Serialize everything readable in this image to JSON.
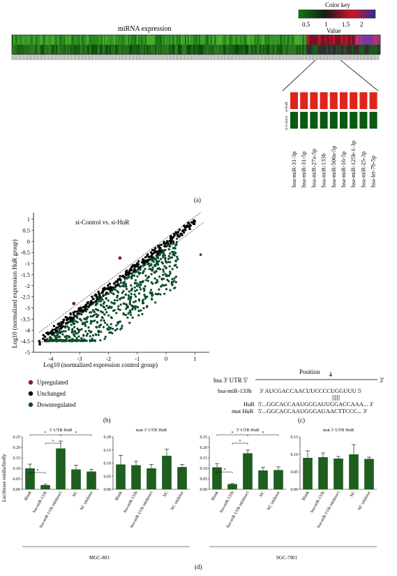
{
  "panel_labels": {
    "a": "(a)",
    "b": "(b)",
    "c": "(c)",
    "d": "(d)"
  },
  "panel_a": {
    "heatmap_title": "miRNA expression",
    "color_key": {
      "title": "Color key",
      "value_label": "Value",
      "ticks": [
        "0.5",
        "1",
        "1.5",
        "2"
      ],
      "colors": [
        "#0a7a10",
        "#1a1a1a",
        "#d4142a",
        "#2a2a9a"
      ]
    },
    "inset_group_labels": [
      "si-Control",
      "si-HuR"
    ],
    "inset_row_colors": {
      "si_control": "#0b5a12",
      "si_hur": "#e0241c"
    },
    "inset_mirnas": [
      "hsa-miR-31-3p",
      "hsa-miR-31-5p",
      "hsa-miR-27a-5p",
      "hsa-miR-133b",
      "hsa-miR-500a-5p",
      "hsa-miR-16-5p",
      "hsa-miR-125b-1-3p",
      "hsa-miR-25-3p",
      "hsa-let-7b-5p"
    ]
  },
  "chart_data": [
    {
      "type": "scatter",
      "panel": "b",
      "title": "si-Control vs. si-HuR",
      "xlabel": "Log10 (normalized expression control group)",
      "ylabel": "Log10 (normalized expression HuR group)",
      "xlim": [
        -4.6,
        1.5
      ],
      "ylim": [
        -5,
        1.3
      ],
      "xticks": [
        "-4",
        "-3",
        "-2",
        "-1",
        "0",
        "1"
      ],
      "yticks": [
        "1",
        "0.5",
        "0",
        "-0.5",
        "-1",
        "-1.5",
        "-2",
        "-2.5",
        "-3",
        "-3.5",
        "-4",
        "-4.5",
        "-5"
      ],
      "legend_placement": "bottom-left",
      "series": [
        {
          "name": "Upregulated",
          "color": "#8b1a1a",
          "x": [
            -3.2,
            -1.6
          ],
          "y": [
            -2.8,
            -0.75
          ]
        },
        {
          "name": "Unchanged",
          "color": "#000000",
          "x": [
            -4.4,
            -4.2,
            -4.0,
            -3.8,
            -3.6,
            -3.4,
            -3.2,
            -3.0,
            -2.8,
            -2.6,
            -2.4,
            -2.2,
            -2.0,
            -1.8,
            -1.6,
            -1.4,
            -1.2,
            -1.0,
            -0.8,
            -0.6,
            -0.4,
            -0.2,
            0.0,
            0.2,
            0.4,
            0.6,
            0.8,
            1.0
          ],
          "y": [
            -4.5,
            -4.3,
            -4.1,
            -3.9,
            -3.7,
            -3.5,
            -3.3,
            -3.1,
            -2.9,
            -2.7,
            -2.5,
            -2.3,
            -2.1,
            -1.9,
            -1.7,
            -1.5,
            -1.3,
            -1.1,
            -0.9,
            -0.7,
            -0.5,
            -0.3,
            -0.1,
            0.1,
            0.3,
            0.5,
            0.7,
            0.9
          ]
        },
        {
          "name": "Downregulated",
          "color": "#0b4a2a",
          "x": [
            -3.8,
            -3.5,
            -3.2,
            -3.0,
            -2.8,
            -2.6,
            -2.4,
            -2.2,
            -2.0,
            -1.8,
            -1.6,
            -1.4,
            -1.2,
            -1.0,
            -0.8,
            -0.6,
            -0.4,
            0.0,
            0.4,
            1.2
          ],
          "y": [
            -4.5,
            -4.3,
            -4.2,
            -4.0,
            -3.8,
            -3.6,
            -3.4,
            -3.2,
            -3.0,
            -2.8,
            -2.6,
            -2.4,
            -2.2,
            -2.0,
            -1.8,
            -1.6,
            -1.4,
            -1.2,
            -0.8,
            -0.6
          ]
        }
      ]
    },
    {
      "type": "bar",
      "panel": "d",
      "cell_line": "MGC-803",
      "title": "3' UTR HuR",
      "ylabel": "Luciferase renilla/firefly",
      "categories": [
        "Blank",
        "hsa-miR-133b",
        "hsa-miR-133b inhibitor1",
        "NC",
        "NC inhibitor"
      ],
      "values": [
        0.1,
        0.02,
        0.195,
        0.095,
        0.085
      ],
      "errors": [
        0.02,
        0.004,
        0.035,
        0.02,
        0.01
      ],
      "ylim": [
        0,
        0.25
      ],
      "yticks": [
        "0.00",
        "0.05",
        "0.10",
        "0.15",
        "0.20",
        "0.25"
      ],
      "significance": [
        {
          "from": 0,
          "to": 2,
          "label": "*"
        },
        {
          "from": 0,
          "to": 1,
          "label": "*"
        },
        {
          "from": 1,
          "to": 2,
          "label": "*"
        },
        {
          "from": 2,
          "to": 4,
          "label": "*"
        }
      ]
    },
    {
      "type": "bar",
      "panel": "d",
      "cell_line": "MGC-803",
      "title": "mut 3' UTR HuR",
      "categories": [
        "Blank",
        "hsa-miR-133b",
        "hsa-miR-133b inhibitor1",
        "NC",
        "NC inhibitor"
      ],
      "values": [
        0.095,
        0.092,
        0.08,
        0.128,
        0.085
      ],
      "errors": [
        0.035,
        0.015,
        0.015,
        0.025,
        0.01
      ],
      "ylim": [
        0,
        0.2
      ],
      "yticks": [
        "0.00",
        "0.05",
        "0.10",
        "0.15",
        "0.20"
      ]
    },
    {
      "type": "bar",
      "panel": "d",
      "cell_line": "SGC-7901",
      "title": "3' UTR HuR",
      "categories": [
        "Blank",
        "hsa-miR-133b",
        "hsa-miR-133b inhibitor1",
        "NC",
        "NC inhibitor"
      ],
      "values": [
        0.105,
        0.025,
        0.172,
        0.09,
        0.092
      ],
      "errors": [
        0.018,
        0.002,
        0.015,
        0.015,
        0.015
      ],
      "ylim": [
        0,
        0.25
      ],
      "yticks": [
        "0.00",
        "0.05",
        "0.10",
        "0.15",
        "0.20",
        "0.25"
      ],
      "significance": [
        {
          "from": 0,
          "to": 2,
          "label": "*"
        },
        {
          "from": 0,
          "to": 1,
          "label": "*"
        },
        {
          "from": 1,
          "to": 2,
          "label": "*"
        },
        {
          "from": 2,
          "to": 4,
          "label": "*"
        }
      ]
    },
    {
      "type": "bar",
      "panel": "d",
      "cell_line": "SGC-7901",
      "title": "mut 3' UTR HuR",
      "categories": [
        "Blank",
        "hsa-miR-133b",
        "hsa-miR-133b inhibitor1",
        "NC",
        "NC inhibitor"
      ],
      "values": [
        0.09,
        0.092,
        0.088,
        0.1,
        0.087
      ],
      "errors": [
        0.02,
        0.012,
        0.006,
        0.028,
        0.005
      ],
      "ylim": [
        0,
        0.15
      ],
      "yticks": [
        "0.00",
        "0.05",
        "0.10",
        "0.15"
      ]
    }
  ],
  "panel_c": {
    "header": "Position",
    "utr_label": "hsa 3' UTR 5'",
    "utr_end": "3'",
    "rows": [
      {
        "name": "hsa-miR-133b",
        "seq": "3' AUCGACCAACUUCCCCUGGUUU  5'"
      },
      {
        "name": "HuR",
        "seq": "5'...GGCACCAAUGGGAUUGGACCAAA... 3'"
      },
      {
        "name": "mut HuR",
        "seq": "5'...GGCACCAAUGGGAUAACTTCCC... 3'"
      }
    ],
    "pairing": "|||||||"
  },
  "cell_lines": [
    "MGC-803",
    "SGC-7901"
  ]
}
